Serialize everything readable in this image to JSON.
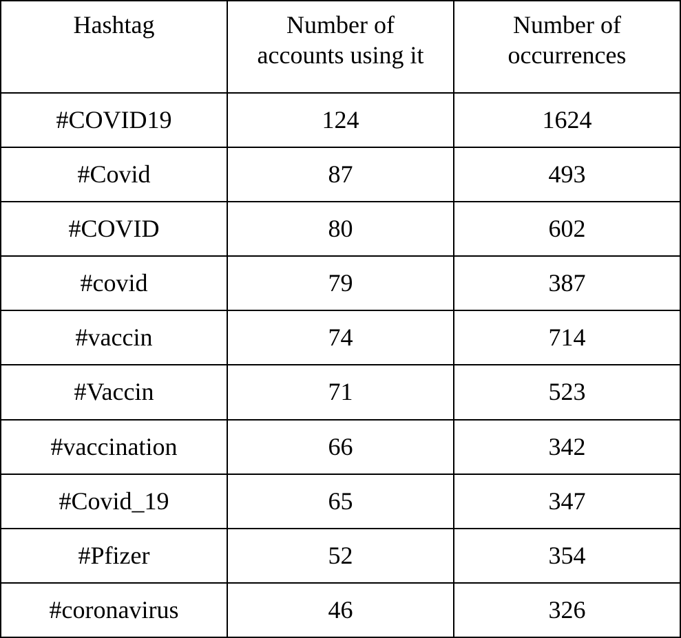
{
  "table": {
    "headers": [
      "Hashtag",
      "Number of\naccounts using it",
      "Number of\noccurrences"
    ],
    "rows": [
      [
        "#COVID19",
        "124",
        "1624"
      ],
      [
        "#Covid",
        "87",
        "493"
      ],
      [
        "#COVID",
        "80",
        "602"
      ],
      [
        "#covid",
        "79",
        "387"
      ],
      [
        "#vaccin",
        "74",
        "714"
      ],
      [
        "#Vaccin",
        "71",
        "523"
      ],
      [
        "#vaccination",
        "66",
        "342"
      ],
      [
        "#Covid_19",
        "65",
        "347"
      ],
      [
        "#Pfizer",
        "52",
        "354"
      ],
      [
        "#coronavirus",
        "46",
        "326"
      ]
    ]
  },
  "chart_data": {
    "type": "table",
    "title": "",
    "columns": [
      "Hashtag",
      "Number of accounts using it",
      "Number of occurrences"
    ],
    "rows": [
      [
        "#COVID19",
        124,
        1624
      ],
      [
        "#Covid",
        87,
        493
      ],
      [
        "#COVID",
        80,
        602
      ],
      [
        "#covid",
        79,
        387
      ],
      [
        "#vaccin",
        74,
        714
      ],
      [
        "#Vaccin",
        71,
        523
      ],
      [
        "#vaccination",
        66,
        342
      ],
      [
        "#Covid_19",
        65,
        347
      ],
      [
        "#Pfizer",
        52,
        354
      ],
      [
        "#coronavirus",
        46,
        326
      ]
    ]
  },
  "colors": {
    "background": "#ffffff",
    "border": "#000000",
    "text": "#000000"
  }
}
